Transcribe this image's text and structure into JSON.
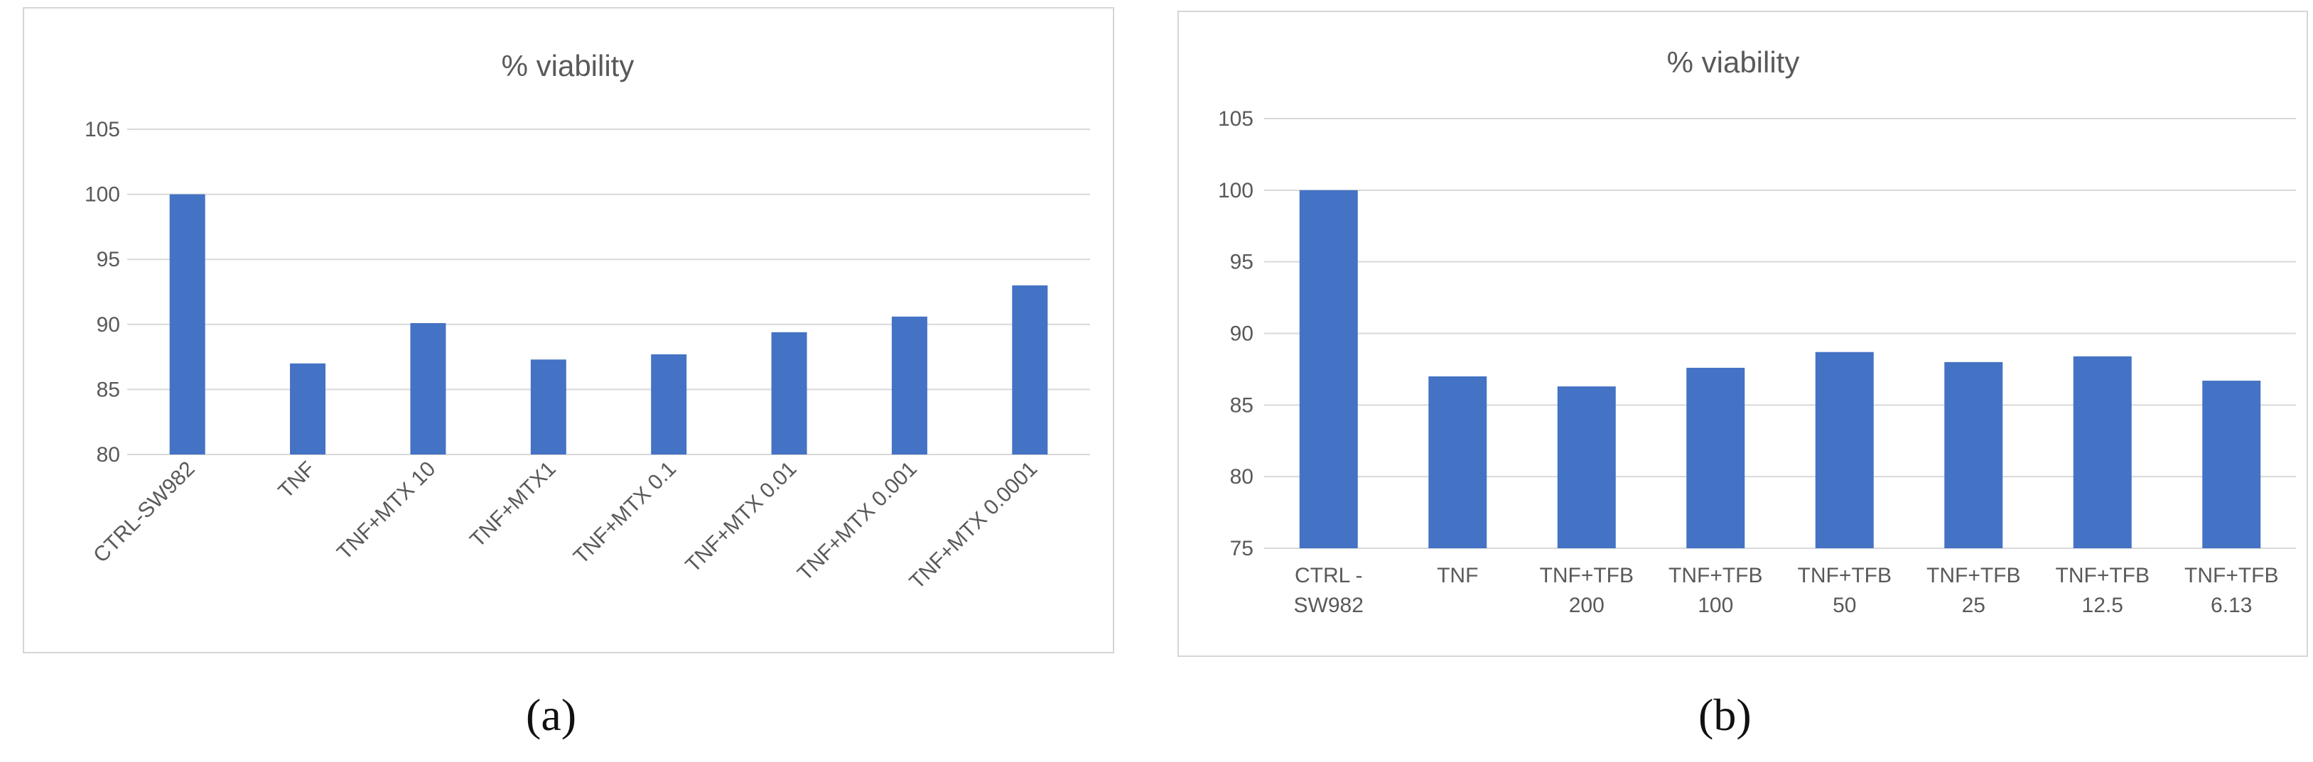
{
  "chart_data": [
    {
      "type": "bar",
      "title": "% viability",
      "categories": [
        "CTRL-SW982",
        "TNF",
        "TNF+MTX 10",
        "TNF+MTX1",
        "TNF+MTX 0.1",
        "TNF+MTX 0.01",
        "TNF+MTX 0.001",
        "TNF+MTX 0.0001"
      ],
      "values": [
        100,
        87,
        90.1,
        87.3,
        87.7,
        89.4,
        90.6,
        93
      ],
      "xlabel": "",
      "ylabel": "",
      "ylim": [
        80,
        105
      ],
      "yticks": [
        80,
        85,
        90,
        95,
        100,
        105
      ],
      "grid": true,
      "color": "#4472c4"
    },
    {
      "type": "bar",
      "title": "% viability",
      "categories": [
        [
          "CTRL -",
          "SW982"
        ],
        [
          "TNF"
        ],
        [
          "TNF+TFB",
          "200"
        ],
        [
          "TNF+TFB",
          "100"
        ],
        [
          "TNF+TFB",
          "50"
        ],
        [
          "TNF+TFB",
          "25"
        ],
        [
          "TNF+TFB",
          "12.5"
        ],
        [
          "TNF+TFB",
          "6.13"
        ]
      ],
      "values": [
        100,
        87,
        86.3,
        87.6,
        88.7,
        88,
        88.4,
        86.7
      ],
      "xlabel": "",
      "ylabel": "",
      "ylim": [
        75,
        105
      ],
      "yticks": [
        75,
        80,
        85,
        90,
        95,
        100,
        105
      ],
      "grid": true,
      "color": "#4472c4"
    }
  ],
  "panel_labels": [
    "(a)",
    "(b)"
  ]
}
